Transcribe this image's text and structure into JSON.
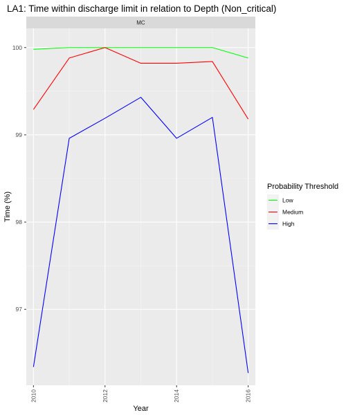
{
  "chart_data": {
    "type": "line",
    "title": "LA1: Time within discharge limit in relation to Depth (Non_critical)",
    "facet_label": "MC",
    "xlabel": "Year",
    "ylabel": "Time (%)",
    "x": [
      2010,
      2011,
      2012,
      2013,
      2014,
      2015,
      2016
    ],
    "x_ticks": [
      "2010",
      "2012",
      "2014",
      "2016"
    ],
    "y_ticks": [
      "97",
      "98",
      "99",
      "100"
    ],
    "xlim": [
      2009.8,
      2016.2
    ],
    "ylim": [
      96.13,
      100.22
    ],
    "grid": true,
    "legend": {
      "title": "Probability Threshold",
      "placement": "right"
    },
    "series": [
      {
        "name": "Low",
        "color": "#00ff00",
        "values": [
          99.98,
          100.0,
          100.0,
          100.0,
          100.0,
          100.0,
          99.88
        ]
      },
      {
        "name": "Medium",
        "color": "#ff0000",
        "values": [
          99.29,
          99.88,
          100.0,
          99.82,
          99.82,
          99.84,
          99.18
        ]
      },
      {
        "name": "High",
        "color": "#0000ff",
        "values": [
          96.34,
          98.96,
          99.19,
          99.43,
          98.96,
          99.2,
          96.27
        ]
      }
    ]
  }
}
